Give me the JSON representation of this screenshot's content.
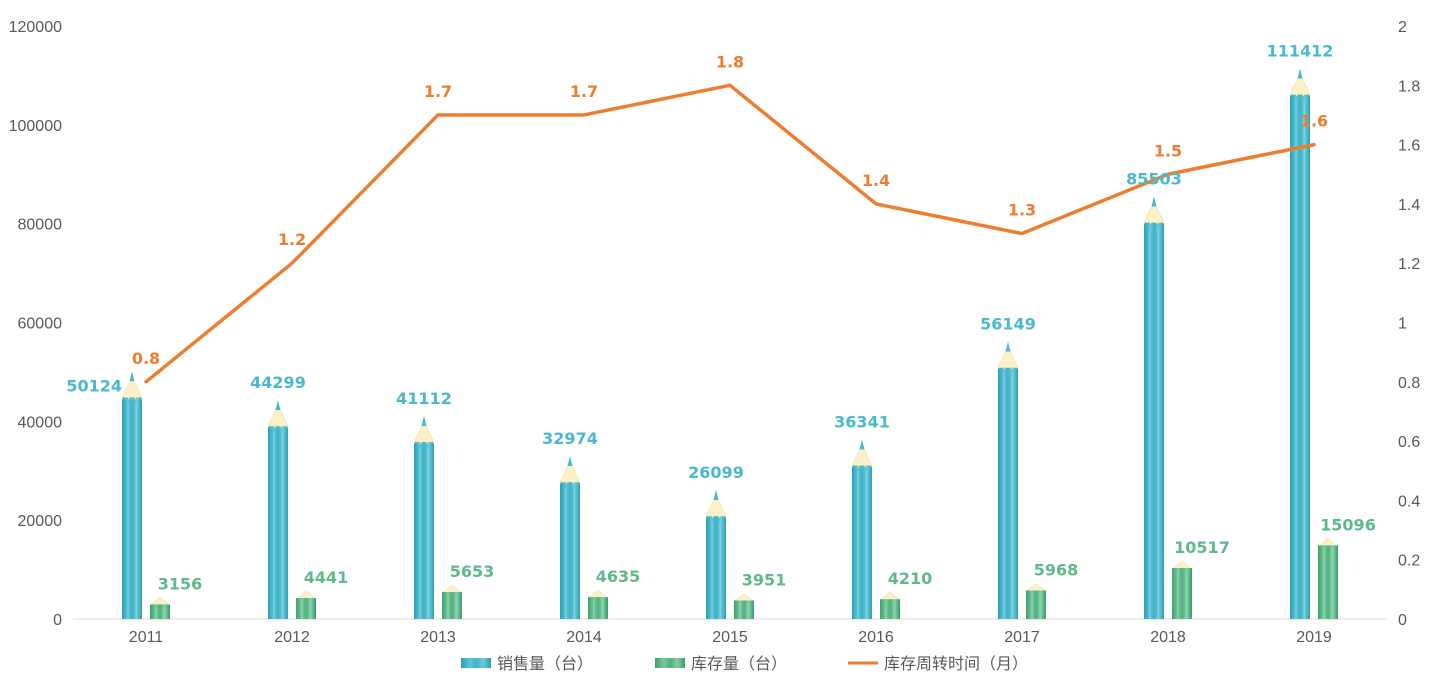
{
  "chart_data": {
    "type": "bar+line",
    "categories": [
      "2011",
      "2012",
      "2013",
      "2014",
      "2015",
      "2016",
      "2017",
      "2018",
      "2019"
    ],
    "series": [
      {
        "name": "销售量（台）",
        "type": "bar",
        "axis": "left",
        "values": [
          50124,
          44299,
          41112,
          32974,
          26099,
          36341,
          56149,
          85503,
          111412
        ]
      },
      {
        "name": "库存量（台）",
        "type": "bar",
        "axis": "left",
        "values": [
          3156,
          4441,
          5653,
          4635,
          3951,
          4210,
          5968,
          10517,
          15096
        ]
      },
      {
        "name": "库存周转时间（月）",
        "type": "line",
        "axis": "right",
        "values": [
          0.8,
          1.2,
          1.7,
          1.7,
          1.8,
          1.4,
          1.3,
          1.5,
          1.6
        ]
      }
    ],
    "y_left": {
      "range": [
        0,
        120000
      ],
      "ticks": [
        "0",
        "20000",
        "40000",
        "60000",
        "80000",
        "100000",
        "120000"
      ]
    },
    "y_right": {
      "range": [
        0,
        2
      ],
      "ticks": [
        "0",
        "0.2",
        "0.4",
        "0.6",
        "0.8",
        "1",
        "1.2",
        "1.4",
        "1.6",
        "1.8",
        "2"
      ]
    },
    "grid": false,
    "legend_position": "bottom",
    "colors": {
      "sales": "#4bb9cc",
      "inventory": "#5fb98a",
      "turnover": "#ed7d31",
      "pencil_tip": "#fbf0c8",
      "axis_text": "#595959"
    }
  }
}
